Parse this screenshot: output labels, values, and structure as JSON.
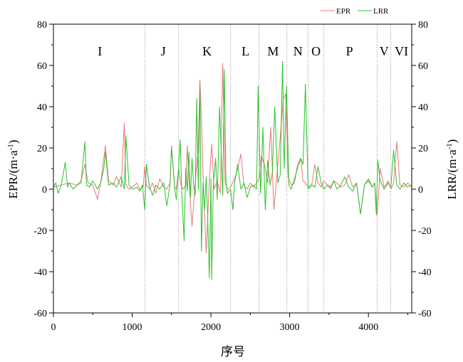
{
  "chart_data": {
    "type": "line",
    "title": "",
    "xlabel": "序号",
    "ylabel_left": "EPR/(m·a-1)",
    "ylabel_right": "LRR/(m·a-1)",
    "xlim": [
      0,
      4550
    ],
    "ylim": [
      -60,
      80
    ],
    "xticks": [
      0,
      1000,
      2000,
      3000,
      4000
    ],
    "yticks": [
      -60,
      -40,
      -20,
      0,
      20,
      40,
      60,
      80
    ],
    "grid": false,
    "legend_position": "top-right",
    "colors": {
      "EPR": "#e8787a",
      "LRR": "#2bc22b",
      "divider": "#888888"
    },
    "region_dividers": [
      1160,
      1590,
      2250,
      2610,
      2965,
      3235,
      3435,
      4110,
      4285
    ],
    "region_labels": [
      {
        "label": "I",
        "x": 590
      },
      {
        "label": "J",
        "x": 1395
      },
      {
        "label": "K",
        "x": 1950
      },
      {
        "label": "L",
        "x": 2440
      },
      {
        "label": "M",
        "x": 2790
      },
      {
        "label": "N",
        "x": 3105
      },
      {
        "label": "O",
        "x": 3335
      },
      {
        "label": "P",
        "x": 3760
      },
      {
        "label": "V",
        "x": 4200
      },
      {
        "label": "VI",
        "x": 4420
      }
    ],
    "series": [
      {
        "name": "EPR",
        "x": [
          0,
          100,
          200,
          300,
          350,
          400,
          440,
          500,
          560,
          600,
          660,
          700,
          760,
          800,
          860,
          900,
          920,
          960,
          1000,
          1060,
          1100,
          1140,
          1160,
          1180,
          1220,
          1260,
          1300,
          1350,
          1400,
          1440,
          1480,
          1500,
          1540,
          1560,
          1590,
          1620,
          1650,
          1680,
          1700,
          1720,
          1760,
          1800,
          1840,
          1860,
          1880,
          1900,
          1940,
          1980,
          2010,
          2040,
          2080,
          2120,
          2150,
          2180,
          2210,
          2250,
          2300,
          2340,
          2380,
          2420,
          2460,
          2500,
          2540,
          2580,
          2610,
          2640,
          2680,
          2720,
          2760,
          2800,
          2840,
          2880,
          2920,
          2950,
          2980,
          3020,
          3060,
          3100,
          3140,
          3170,
          3200,
          3235,
          3280,
          3320,
          3360,
          3400,
          3435,
          3480,
          3520,
          3560,
          3600,
          3650,
          3700,
          3750,
          3800,
          3850,
          3900,
          3950,
          4000,
          4050,
          4080,
          4110,
          4150,
          4200,
          4250,
          4285,
          4320,
          4360,
          4400,
          4450,
          4500,
          4550
        ],
        "y": [
          1,
          2,
          3,
          2,
          4,
          12,
          3,
          2,
          -5,
          3,
          21,
          4,
          2,
          6,
          1,
          32,
          2,
          0,
          1,
          3,
          0,
          1,
          11,
          2,
          0,
          3,
          -2,
          5,
          1,
          0,
          3,
          20,
          1,
          0,
          10,
          2,
          0,
          2,
          21,
          5,
          -18,
          3,
          20,
          53,
          35,
          6,
          -31,
          4,
          22,
          0,
          4,
          -2,
          61,
          3,
          0,
          1,
          5,
          10,
          17,
          2,
          0,
          3,
          1,
          3,
          5,
          16,
          12,
          3,
          30,
          -10,
          8,
          25,
          44,
          46,
          6,
          2,
          3,
          12,
          15,
          4,
          3,
          1,
          2,
          12,
          3,
          1,
          4,
          2,
          0,
          4,
          3,
          1,
          2,
          7,
          1,
          3,
          -12,
          2,
          4,
          1,
          3,
          -13,
          10,
          1,
          4,
          0,
          3,
          23,
          2,
          1,
          3,
          1
        ]
      },
      {
        "name": "LRR",
        "x": [
          0,
          30,
          60,
          100,
          150,
          180,
          200,
          250,
          300,
          350,
          400,
          420,
          460,
          500,
          560,
          600,
          640,
          660,
          700,
          760,
          800,
          860,
          900,
          920,
          960,
          1000,
          1060,
          1100,
          1130,
          1160,
          1180,
          1220,
          1260,
          1300,
          1350,
          1400,
          1440,
          1480,
          1500,
          1540,
          1560,
          1590,
          1610,
          1630,
          1660,
          1680,
          1700,
          1720,
          1740,
          1760,
          1780,
          1800,
          1820,
          1840,
          1860,
          1880,
          1900,
          1920,
          1940,
          1960,
          1980,
          2000,
          2010,
          2030,
          2060,
          2080,
          2110,
          2150,
          2170,
          2190,
          2210,
          2250,
          2280,
          2300,
          2340,
          2380,
          2420,
          2460,
          2500,
          2540,
          2580,
          2600,
          2630,
          2660,
          2690,
          2720,
          2750,
          2780,
          2810,
          2850,
          2880,
          2910,
          2930,
          2960,
          2990,
          3020,
          3060,
          3100,
          3140,
          3170,
          3200,
          3235,
          3280,
          3320,
          3360,
          3400,
          3435,
          3480,
          3520,
          3560,
          3600,
          3650,
          3700,
          3750,
          3800,
          3850,
          3900,
          3950,
          4000,
          4050,
          4080,
          4100,
          4120,
          4150,
          4200,
          4250,
          4285,
          4320,
          4360,
          4400,
          4450,
          4500,
          4550
        ],
        "y": [
          1,
          3,
          -2,
          2,
          13,
          1,
          3,
          0,
          2,
          3,
          23,
          2,
          1,
          4,
          0,
          3,
          10,
          18,
          2,
          3,
          1,
          6,
          0,
          26,
          2,
          0,
          1,
          -1,
          2,
          -10,
          12,
          1,
          -3,
          2,
          0,
          3,
          -8,
          2,
          21,
          0,
          -5,
          10,
          24,
          -2,
          -25,
          10,
          -1,
          18,
          -4,
          15,
          2,
          -3,
          44,
          0,
          50,
          -30,
          3,
          -10,
          6,
          -15,
          -43,
          5,
          -44,
          2,
          15,
          -5,
          40,
          -3,
          58,
          5,
          -2,
          0,
          -10,
          3,
          12,
          0,
          3,
          -4,
          1,
          2,
          0,
          50,
          -2,
          30,
          -10,
          14,
          2,
          8,
          40,
          3,
          7,
          62,
          10,
          50,
          2,
          0,
          5,
          10,
          15,
          12,
          51,
          0,
          2,
          1,
          11,
          3,
          0,
          2,
          1,
          4,
          0,
          2,
          6,
          1,
          -1,
          3,
          -12,
          2,
          5,
          1,
          3,
          -12,
          14,
          4,
          0,
          3,
          1,
          19,
          2,
          0,
          3,
          1,
          2
        ]
      }
    ]
  }
}
